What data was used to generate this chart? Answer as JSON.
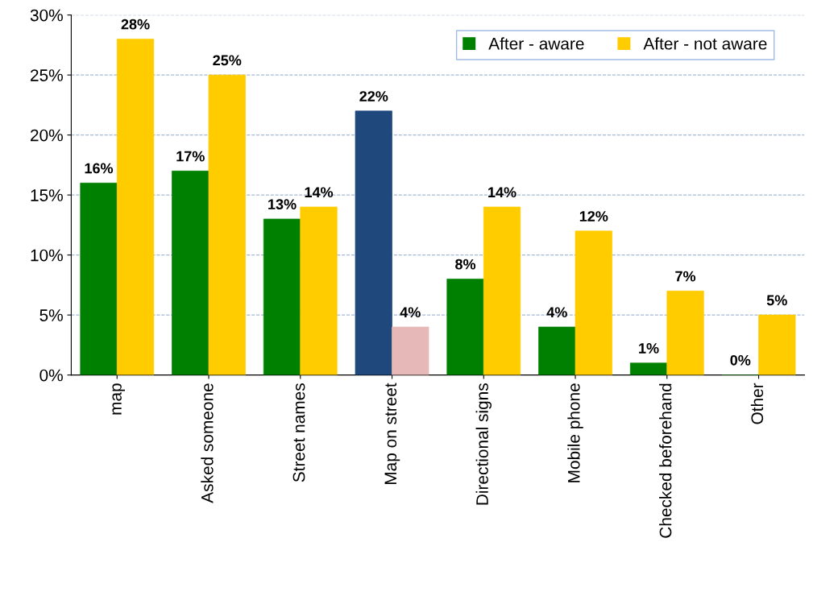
{
  "chart_data": {
    "type": "bar",
    "categories": [
      "map",
      "Asked someone",
      "Street names",
      "Map on street",
      "Directional signs",
      "Mobile phone",
      "Checked beforehand",
      "Other"
    ],
    "series": [
      {
        "name": "After - aware",
        "color": "#008000",
        "colors": [
          "#008000",
          "#008000",
          "#008000",
          "#1f497d",
          "#008000",
          "#008000",
          "#008000",
          "#008000"
        ],
        "values": [
          16,
          17,
          13,
          22,
          8,
          4,
          1,
          0
        ],
        "value_labels": [
          "16%",
          "17%",
          "13%",
          "22%",
          "8%",
          "4%",
          "1%",
          "0%"
        ]
      },
      {
        "name": "After - not aware",
        "color": "#ffcc00",
        "colors": [
          "#ffcc00",
          "#ffcc00",
          "#ffcc00",
          "#e6b9b8",
          "#ffcc00",
          "#ffcc00",
          "#ffcc00",
          "#ffcc00"
        ],
        "values": [
          28,
          25,
          14,
          4,
          14,
          12,
          7,
          5
        ],
        "value_labels": [
          "28%",
          "25%",
          "14%",
          "4%",
          "14%",
          "12%",
          "7%",
          "5%"
        ]
      }
    ],
    "ylim": [
      0,
      30
    ],
    "yticks": [
      {
        "value": 0,
        "label": "0%"
      },
      {
        "value": 5,
        "label": "5%"
      },
      {
        "value": 10,
        "label": "10%"
      },
      {
        "value": 15,
        "label": "15%"
      },
      {
        "value": 20,
        "label": "20%"
      },
      {
        "value": 25,
        "label": "25%"
      },
      {
        "value": 30,
        "label": "30%"
      }
    ],
    "grid": "y",
    "legend": "top right"
  }
}
